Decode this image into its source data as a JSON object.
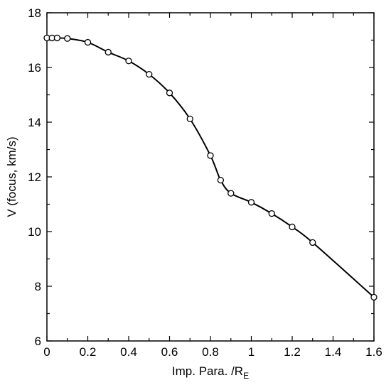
{
  "chart_data": {
    "type": "line",
    "xlabel": "Imp. Para. /R",
    "xlabel_subscript": "E",
    "ylabel": "V (focus, km/s)",
    "xlim": [
      0,
      1.6
    ],
    "ylim": [
      6,
      18
    ],
    "x_ticks": [
      0,
      0.2,
      0.4,
      0.6,
      0.8,
      1.0,
      1.2,
      1.4,
      1.6
    ],
    "x_tick_labels": [
      "0",
      "0.2",
      "0.4",
      "0.6",
      "0.8",
      "1",
      "1.2",
      "1.4",
      "1.6"
    ],
    "y_ticks": [
      6,
      8,
      10,
      12,
      14,
      16,
      18
    ],
    "y_tick_labels": [
      "6",
      "8",
      "10",
      "12",
      "14",
      "16",
      "18"
    ],
    "grid": false,
    "series": [
      {
        "x": [
          0,
          0.025,
          0.05,
          0.1,
          0.2,
          0.3,
          0.4,
          0.5,
          0.6,
          0.7,
          0.8,
          0.85,
          0.9,
          1.0,
          1.1,
          1.2,
          1.3,
          1.6
        ],
        "y": [
          17.08,
          17.08,
          17.08,
          17.06,
          16.92,
          16.56,
          16.24,
          15.75,
          15.07,
          14.12,
          12.78,
          11.88,
          11.4,
          11.07,
          10.66,
          10.17,
          9.6,
          7.6
        ]
      }
    ]
  }
}
